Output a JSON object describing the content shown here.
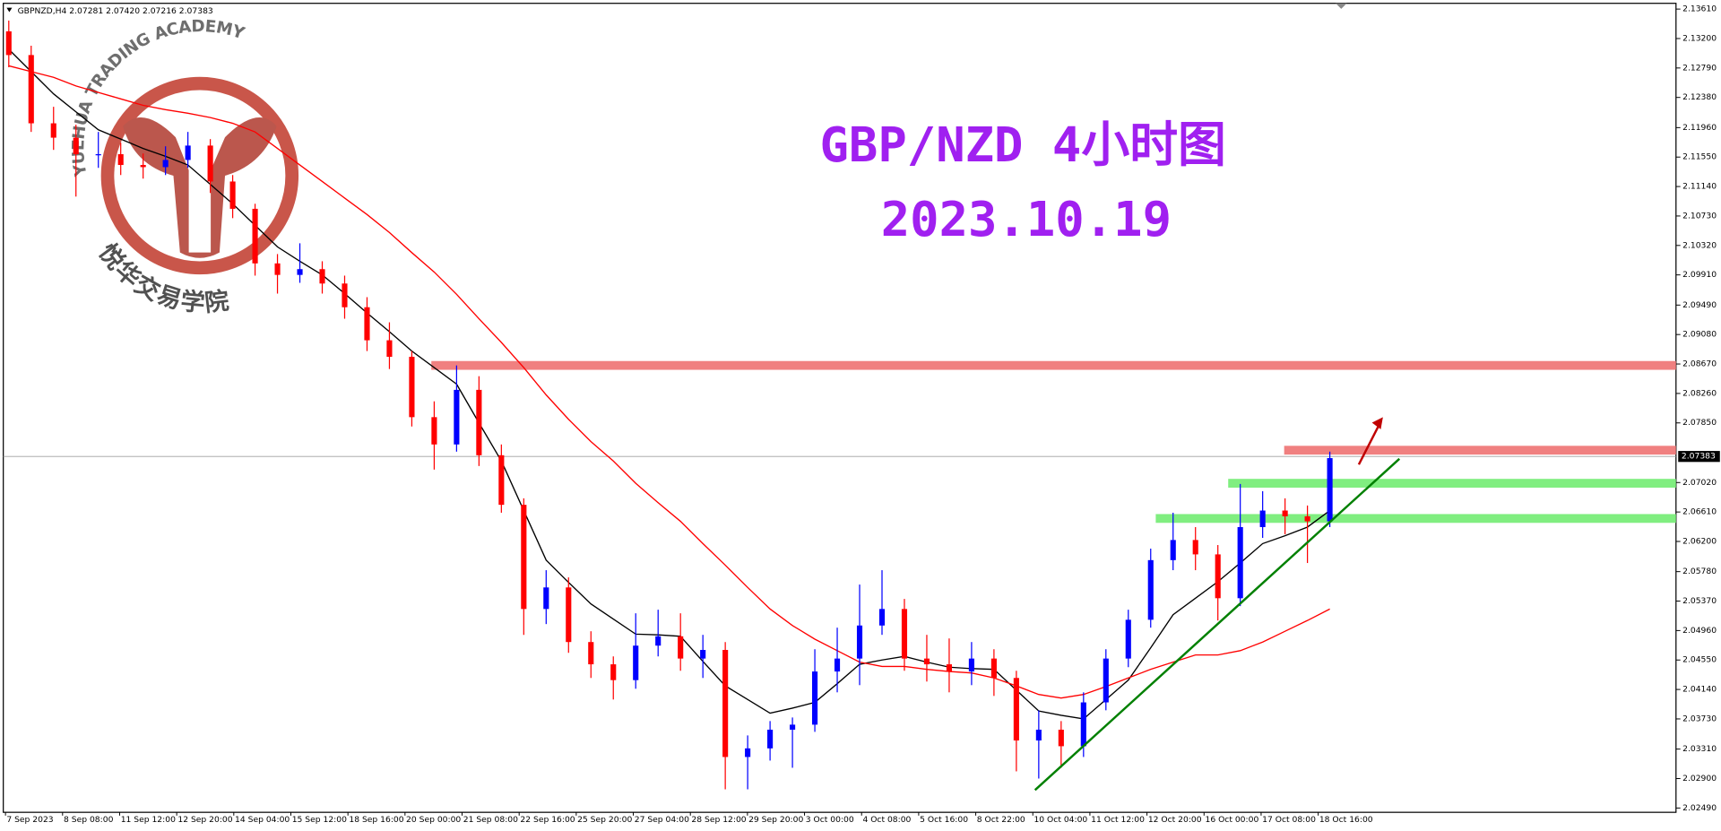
{
  "header": "GBPNZD,H4 2.07281 2.07420 2.07216 2.07383",
  "watermark": {
    "en": "YUEHUA TRADING ACADEMY",
    "cn": "悦华交易学院"
  },
  "chart_data": {
    "type": "candlestick",
    "title": "GBP/NZD 4小时图",
    "subtitle": "2023.10.19",
    "xlabels": [
      "7 Sep 2023",
      "8 Sep 08:00",
      "11 Sep 12:00",
      "12 Sep 20:00",
      "14 Sep 04:00",
      "15 Sep 12:00",
      "18 Sep 16:00",
      "20 Sep 00:00",
      "21 Sep 08:00",
      "22 Sep 16:00",
      "25 Sep 20:00",
      "27 Sep 04:00",
      "28 Sep 12:00",
      "29 Sep 20:00",
      "3 Oct 00:00",
      "4 Oct 08:00",
      "5 Oct 16:00",
      "8 Oct 22:00",
      "10 Oct 04:00",
      "11 Oct 12:00",
      "12 Oct 20:00",
      "16 Oct 00:00",
      "17 Oct 08:00",
      "18 Oct 16:00"
    ],
    "up_color": "#0000ff",
    "down_color": "#ff0000",
    "candles": [
      [
        2.133,
        2.1345,
        2.128,
        2.1297
      ],
      [
        2.1297,
        2.131,
        2.119,
        2.1202
      ],
      [
        2.1202,
        2.1225,
        2.1165,
        2.1182
      ],
      [
        2.1182,
        2.12,
        2.11,
        2.1159
      ],
      [
        2.1159,
        2.119,
        2.114,
        2.1159
      ],
      [
        2.1159,
        2.1175,
        2.113,
        2.1144
      ],
      [
        2.1144,
        2.116,
        2.1125,
        2.1141
      ],
      [
        2.1141,
        2.117,
        2.113,
        2.1151
      ],
      [
        2.1151,
        2.119,
        2.114,
        2.1171
      ],
      [
        2.1171,
        2.118,
        2.1105,
        2.1121
      ],
      [
        2.1121,
        2.113,
        2.107,
        2.1083
      ],
      [
        2.1083,
        2.109,
        2.099,
        2.1007
      ],
      [
        2.1007,
        2.102,
        2.0965,
        2.0991
      ],
      [
        2.0991,
        2.1035,
        2.098,
        2.0999
      ],
      [
        2.0999,
        2.101,
        2.0965,
        2.0979
      ],
      [
        2.0979,
        2.099,
        2.093,
        2.0946
      ],
      [
        2.0946,
        2.096,
        2.0885,
        2.09
      ],
      [
        2.09,
        2.0925,
        2.086,
        2.0877
      ],
      [
        2.0877,
        2.0885,
        2.078,
        2.0793
      ],
      [
        2.0793,
        2.0815,
        2.072,
        2.0755
      ],
      [
        2.0755,
        2.0865,
        2.0745,
        2.0831
      ],
      [
        2.0831,
        2.085,
        2.0725,
        2.074
      ],
      [
        2.074,
        2.0755,
        2.066,
        2.0671
      ],
      [
        2.0671,
        2.068,
        2.049,
        2.0526
      ],
      [
        2.0526,
        2.058,
        2.0505,
        2.0556
      ],
      [
        2.0556,
        2.057,
        2.0465,
        2.048
      ],
      [
        2.048,
        2.0495,
        2.043,
        2.0449
      ],
      [
        2.0449,
        2.046,
        2.04,
        2.0427
      ],
      [
        2.0427,
        2.052,
        2.0415,
        2.0475
      ],
      [
        2.0475,
        2.0525,
        2.046,
        2.0488
      ],
      [
        2.0488,
        2.052,
        2.044,
        2.0457
      ],
      [
        2.0457,
        2.049,
        2.043,
        2.0469
      ],
      [
        2.0469,
        2.048,
        2.0275,
        2.032
      ],
      [
        2.032,
        2.035,
        2.0275,
        2.0332
      ],
      [
        2.0332,
        2.037,
        2.0315,
        2.0358
      ],
      [
        2.0358,
        2.0375,
        2.0305,
        2.0365
      ],
      [
        2.0365,
        2.047,
        2.0355,
        2.0439
      ],
      [
        2.0439,
        2.05,
        2.041,
        2.0457
      ],
      [
        2.0457,
        2.056,
        2.042,
        2.0503
      ],
      [
        2.0503,
        2.058,
        2.049,
        2.0526
      ],
      [
        2.0526,
        2.054,
        2.044,
        2.0457
      ],
      [
        2.0457,
        2.049,
        2.0425,
        2.0449
      ],
      [
        2.0449,
        2.0485,
        2.041,
        2.0439
      ],
      [
        2.0439,
        2.048,
        2.042,
        2.0457
      ],
      [
        2.0457,
        2.047,
        2.0405,
        2.043
      ],
      [
        2.043,
        2.044,
        2.03,
        2.0343
      ],
      [
        2.0343,
        2.0385,
        2.029,
        2.0358
      ],
      [
        2.0358,
        2.037,
        2.0305,
        2.0335
      ],
      [
        2.0335,
        2.041,
        2.032,
        2.0396
      ],
      [
        2.0396,
        2.047,
        2.0385,
        2.0457
      ],
      [
        2.0457,
        2.0525,
        2.0445,
        2.0511
      ],
      [
        2.0511,
        2.061,
        2.05,
        2.0594
      ],
      [
        2.0594,
        2.066,
        2.058,
        2.0622
      ],
      [
        2.0622,
        2.064,
        2.058,
        2.0602
      ],
      [
        2.0602,
        2.0615,
        2.051,
        2.0541
      ],
      [
        2.0541,
        2.07,
        2.053,
        2.064
      ],
      [
        2.064,
        2.069,
        2.0625,
        2.0663
      ],
      [
        2.0663,
        2.068,
        2.063,
        2.0655
      ],
      [
        2.0655,
        2.067,
        2.059,
        2.0648
      ],
      [
        2.0648,
        2.0745,
        2.064,
        2.0736
      ]
    ],
    "series": [
      {
        "color": "#000000",
        "values": [
          2.1305,
          2.1274,
          2.1243,
          2.1218,
          2.1193,
          2.118,
          2.1167,
          2.1156,
          2.1144,
          2.1117,
          2.109,
          2.106,
          2.103,
          2.101,
          2.0991,
          2.0965,
          2.0938,
          2.0912,
          2.0885,
          2.0862,
          2.0839,
          2.0785,
          2.0732,
          2.0663,
          2.0594,
          2.0563,
          2.0533,
          2.0512,
          2.0491,
          2.049,
          2.0488,
          2.0453,
          2.0419,
          2.04,
          2.0381,
          2.0388,
          2.0396,
          2.0422,
          2.0449,
          2.0455,
          2.046,
          2.0452,
          2.0445,
          2.0443,
          2.0442,
          2.0413,
          2.0384,
          2.0378,
          2.0373,
          2.04,
          2.0427,
          2.0472,
          2.0518,
          2.0541,
          2.0564,
          2.059,
          2.0617,
          2.0628,
          2.064,
          2.0663
        ]
      },
      {
        "color": "#ff0000",
        "values": [
          2.1282,
          2.1274,
          2.1266,
          2.1254,
          2.1245,
          2.1236,
          2.1227,
          2.1221,
          2.1216,
          2.121,
          2.1202,
          2.119,
          2.1167,
          2.1144,
          2.1121,
          2.1098,
          2.1075,
          2.105,
          2.1022,
          2.0995,
          2.0964,
          2.093,
          2.0897,
          2.0862,
          2.0824,
          2.079,
          2.0759,
          2.0732,
          2.0701,
          2.0674,
          2.0648,
          2.0617,
          2.0587,
          2.0556,
          2.0526,
          2.0503,
          2.0484,
          2.0468,
          2.0452,
          2.0446,
          2.0446,
          2.0442,
          2.0439,
          2.0437,
          2.043,
          2.0419,
          2.0407,
          2.0402,
          2.0407,
          2.0418,
          2.043,
          2.0442,
          2.0452,
          2.0462,
          2.0462,
          2.0468,
          2.048,
          2.0495,
          2.051,
          2.0526
        ]
      }
    ],
    "levels": [
      {
        "value": 2.0865,
        "color": "#f08080"
      },
      {
        "value": 2.0747,
        "color": "#f08080"
      },
      {
        "value": 2.0701,
        "color": "#80ee80"
      },
      {
        "value": 2.0652,
        "color": "#80ee80"
      }
    ],
    "trendline": {
      "values": [
        2.0274,
        2.0735
      ],
      "color": "#008000"
    },
    "arrow": {
      "values": [
        2.0727,
        2.0793
      ],
      "color": "#c00000"
    },
    "last_price": 2.07383,
    "ylim": [
      2.0243,
      2.1369
    ],
    "yticks": [
      {
        "value": 2.1361,
        "label": "2.13610"
      },
      {
        "value": 2.132,
        "label": "2.13200"
      },
      {
        "value": 2.1279,
        "label": "2.12790"
      },
      {
        "value": 2.1238,
        "label": "2.12380"
      },
      {
        "value": 2.1196,
        "label": "2.11960"
      },
      {
        "value": 2.1155,
        "label": "2.11550"
      },
      {
        "value": 2.1114,
        "label": "2.11140"
      },
      {
        "value": 2.1073,
        "label": "2.10730"
      },
      {
        "value": 2.1032,
        "label": "2.10320"
      },
      {
        "value": 2.0991,
        "label": "2.09910"
      },
      {
        "value": 2.0949,
        "label": "2.09490"
      },
      {
        "value": 2.0908,
        "label": "2.09080"
      },
      {
        "value": 2.0867,
        "label": "2.08670"
      },
      {
        "value": 2.0826,
        "label": "2.08260"
      },
      {
        "value": 2.0785,
        "label": "2.07850"
      },
      {
        "value": 2.0702,
        "label": "2.07020"
      },
      {
        "value": 2.0661,
        "label": "2.06610"
      },
      {
        "value": 2.062,
        "label": "2.06200"
      },
      {
        "value": 2.0578,
        "label": "2.05780"
      },
      {
        "value": 2.0537,
        "label": "2.05370"
      },
      {
        "value": 2.0496,
        "label": "2.04960"
      },
      {
        "value": 2.0455,
        "label": "2.04550"
      },
      {
        "value": 2.0414,
        "label": "2.04140"
      },
      {
        "value": 2.0373,
        "label": "2.03730"
      },
      {
        "value": 2.0331,
        "label": "2.03310"
      },
      {
        "value": 2.029,
        "label": "2.02900"
      },
      {
        "value": 2.0249,
        "label": "2.02490"
      }
    ]
  }
}
